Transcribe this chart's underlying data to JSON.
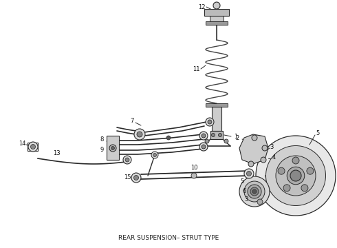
{
  "title": "REAR SUSPENSION– STRUT TYPE",
  "background_color": "#ffffff",
  "title_fontsize": 6.5,
  "title_color": "#222222",
  "figsize": [
    4.9,
    3.6
  ],
  "dpi": 100,
  "line_color": "#2a2a2a",
  "label_color": "#111111",
  "label_fontsize": 6.0
}
